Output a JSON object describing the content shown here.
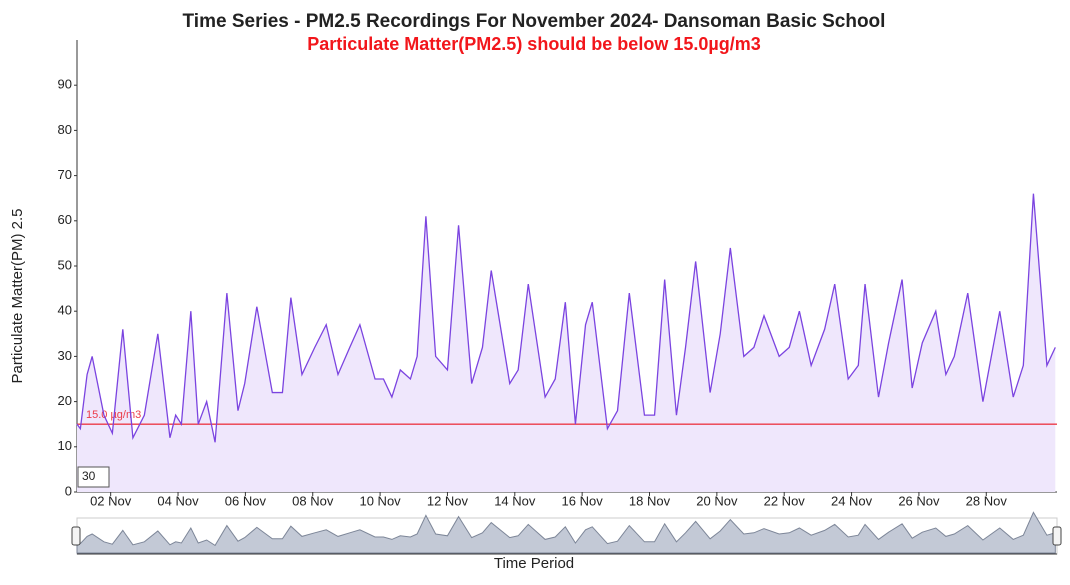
{
  "chart_data": {
    "type": "area",
    "title": "Time Series - PM2.5 Recordings For November 2024- Dansoman Basic School",
    "subtitle": "Particulate Matter(PM2.5) should be below 15.0µg/m3",
    "y_label": "Particulate Matter(PM) 2.5",
    "x_label": "Time Period",
    "line_color": "#7b44e0",
    "fill_color": "#efe7fc",
    "threshold": {
      "value": 15,
      "label": "15.0 µg/m3",
      "color": "#ec3b48"
    },
    "range_input": "30",
    "xlim": [
      1,
      30.1
    ],
    "xticks": [
      {
        "value": 2,
        "label": "02 Nov"
      },
      {
        "value": 4,
        "label": "04 Nov"
      },
      {
        "value": 6,
        "label": "06 Nov"
      },
      {
        "value": 8,
        "label": "08 Nov"
      },
      {
        "value": 10,
        "label": "10 Nov"
      },
      {
        "value": 12,
        "label": "12 Nov"
      },
      {
        "value": 14,
        "label": "14 Nov"
      },
      {
        "value": 16,
        "label": "16 Nov"
      },
      {
        "value": 18,
        "label": "18 Nov"
      },
      {
        "value": 20,
        "label": "20 Nov"
      },
      {
        "value": 22,
        "label": "22 Nov"
      },
      {
        "value": 24,
        "label": "24 Nov"
      },
      {
        "value": 26,
        "label": "26 Nov"
      },
      {
        "value": 28,
        "label": "28 Nov"
      }
    ],
    "ylim": [
      0,
      100
    ],
    "yticks": [
      0,
      10,
      20,
      30,
      40,
      50,
      60,
      70,
      80,
      90
    ],
    "x": [
      1.0,
      1.1,
      1.3,
      1.45,
      1.8,
      2.05,
      2.36,
      2.66,
      3.0,
      3.4,
      3.76,
      3.93,
      4.1,
      4.38,
      4.6,
      4.85,
      5.1,
      5.45,
      5.78,
      5.98,
      6.34,
      6.8,
      7.1,
      7.35,
      7.68,
      8.06,
      8.4,
      8.75,
      9.1,
      9.4,
      9.85,
      10.1,
      10.35,
      10.6,
      10.9,
      11.1,
      11.36,
      11.65,
      12.0,
      12.33,
      12.72,
      13.04,
      13.3,
      13.85,
      14.1,
      14.4,
      14.9,
      15.2,
      15.5,
      15.8,
      16.1,
      16.3,
      16.75,
      17.05,
      17.4,
      17.85,
      18.15,
      18.45,
      18.8,
      19.07,
      19.37,
      19.8,
      20.1,
      20.4,
      20.8,
      21.1,
      21.4,
      21.85,
      22.15,
      22.45,
      22.8,
      23.2,
      23.5,
      23.9,
      24.2,
      24.4,
      24.8,
      25.1,
      25.5,
      25.8,
      26.1,
      26.5,
      26.8,
      27.05,
      27.45,
      27.9,
      28.4,
      28.8,
      29.1,
      29.4,
      29.8,
      30.05
    ],
    "values": [
      15,
      14,
      26,
      30,
      17,
      13,
      36,
      12,
      17,
      35,
      12,
      17,
      15,
      40,
      15,
      20,
      11,
      44,
      18,
      24,
      41,
      22,
      22,
      43,
      26,
      32,
      37,
      26,
      32,
      37,
      25,
      25,
      21,
      27,
      25,
      30,
      61,
      30,
      27,
      59,
      24,
      32,
      49,
      24,
      27,
      46,
      21,
      25,
      42,
      15,
      37,
      42,
      14,
      18,
      44,
      17,
      17,
      47,
      17,
      32,
      51,
      22,
      35,
      54,
      30,
      32,
      39,
      30,
      32,
      40,
      28,
      36,
      46,
      25,
      28,
      46,
      21,
      33,
      47,
      23,
      33,
      40,
      26,
      30,
      44,
      20,
      40,
      21,
      28,
      66,
      28,
      32
    ]
  }
}
